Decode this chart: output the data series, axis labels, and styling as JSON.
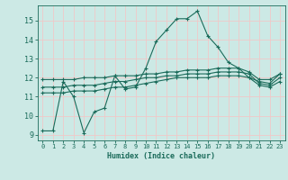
{
  "xlabel": "Humidex (Indice chaleur)",
  "bg_color": "#cce9e5",
  "grid_color": "#f0c8c8",
  "line_color": "#1a6b5a",
  "xlim": [
    -0.5,
    23.5
  ],
  "ylim": [
    8.7,
    15.8
  ],
  "yticks": [
    9,
    10,
    11,
    12,
    13,
    14,
    15
  ],
  "xticks": [
    0,
    1,
    2,
    3,
    4,
    5,
    6,
    7,
    8,
    9,
    10,
    11,
    12,
    13,
    14,
    15,
    16,
    17,
    18,
    19,
    20,
    21,
    22,
    23
  ],
  "line1_x": [
    0,
    1,
    2,
    3,
    4,
    5,
    6,
    7,
    8,
    9,
    10,
    11,
    12,
    13,
    14,
    15,
    16,
    17,
    18,
    19,
    20,
    21,
    22,
    23
  ],
  "line1_y": [
    9.2,
    9.2,
    11.8,
    11.0,
    9.1,
    10.2,
    10.4,
    12.1,
    11.4,
    11.5,
    12.5,
    13.9,
    14.5,
    15.1,
    15.1,
    15.5,
    14.2,
    13.6,
    12.8,
    12.5,
    12.0,
    11.8,
    11.7,
    12.2
  ],
  "line2_x": [
    0,
    1,
    2,
    3,
    4,
    5,
    6,
    7,
    8,
    9,
    10,
    11,
    12,
    13,
    14,
    15,
    16,
    17,
    18,
    19,
    20,
    21,
    22,
    23
  ],
  "line2_y": [
    11.9,
    11.9,
    11.9,
    11.9,
    12.0,
    12.0,
    12.0,
    12.1,
    12.1,
    12.1,
    12.2,
    12.2,
    12.3,
    12.3,
    12.4,
    12.4,
    12.4,
    12.5,
    12.5,
    12.5,
    12.3,
    11.9,
    11.9,
    12.2
  ],
  "line3_x": [
    0,
    1,
    2,
    3,
    4,
    5,
    6,
    7,
    8,
    9,
    10,
    11,
    12,
    13,
    14,
    15,
    16,
    17,
    18,
    19,
    20,
    21,
    22,
    23
  ],
  "line3_y": [
    11.5,
    11.5,
    11.5,
    11.6,
    11.6,
    11.6,
    11.7,
    11.8,
    11.8,
    11.9,
    12.0,
    12.0,
    12.1,
    12.1,
    12.2,
    12.2,
    12.2,
    12.3,
    12.3,
    12.3,
    12.2,
    11.7,
    11.6,
    12.0
  ],
  "line4_x": [
    0,
    1,
    2,
    3,
    4,
    5,
    6,
    7,
    8,
    9,
    10,
    11,
    12,
    13,
    14,
    15,
    16,
    17,
    18,
    19,
    20,
    21,
    22,
    23
  ],
  "line4_y": [
    11.2,
    11.2,
    11.2,
    11.3,
    11.3,
    11.3,
    11.4,
    11.5,
    11.5,
    11.6,
    11.7,
    11.8,
    11.9,
    12.0,
    12.0,
    12.0,
    12.0,
    12.1,
    12.1,
    12.1,
    12.0,
    11.6,
    11.5,
    11.8
  ]
}
